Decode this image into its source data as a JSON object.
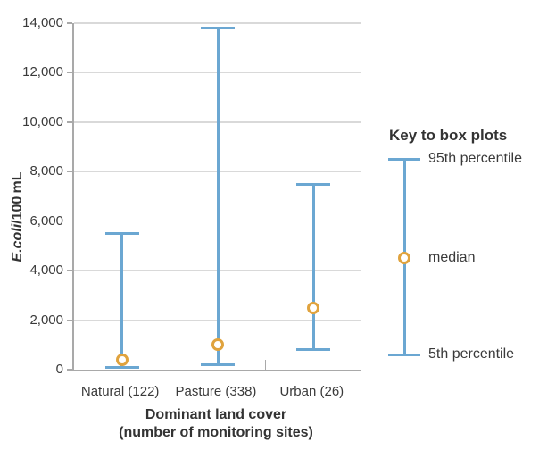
{
  "colors": {
    "whisker_blue": "#6ba7d2",
    "median_orange": "#e0a33e",
    "median_fill": "#ffffff",
    "gridline_gray": "#d9d9d9",
    "axis_gray": "#a9a9a9",
    "text_dark": "#3a3a3a"
  },
  "y_axis": {
    "title_italic": "E.coli",
    "title_rest": "/100 mL",
    "tick_labels": [
      "0",
      "2,000",
      "4,000",
      "6,000",
      "8,000",
      "10,000",
      "12,000",
      "14,000"
    ]
  },
  "x_axis": {
    "title_line1": "Dominant land cover",
    "title_line2": "(number of monitoring sites)"
  },
  "legend": {
    "title": "Key to box plots",
    "p95_label": "95th percentile",
    "median_label": "median",
    "p5_label": "5th percentile"
  },
  "chart_data": {
    "type": "boxplot",
    "subtype": "whisker range (5th to 95th percentile) with median point",
    "title": "",
    "xlabel": "Dominant land cover (number of monitoring sites)",
    "ylabel": "E.coli/100 mL",
    "categories": [
      "Natural (122)",
      "Pasture (338)",
      "Urban (26)"
    ],
    "series": [
      {
        "name": "95th percentile",
        "values": [
          5500,
          13800,
          7500
        ]
      },
      {
        "name": "median",
        "values": [
          400,
          1000,
          2500
        ]
      },
      {
        "name": "5th percentile",
        "values": [
          100,
          200,
          800
        ]
      }
    ],
    "ylim": [
      0,
      14000
    ],
    "ytick_step": 2000,
    "grid": true,
    "legend_position": "right"
  }
}
